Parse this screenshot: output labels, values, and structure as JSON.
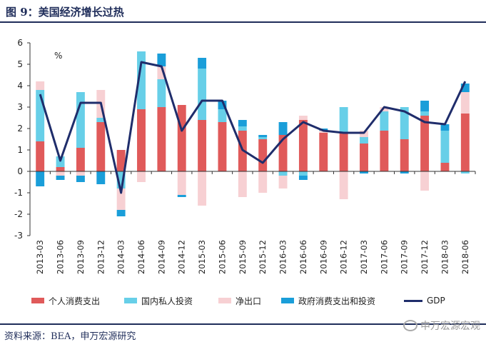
{
  "header": {
    "title": "图 9：美国经济增长过热"
  },
  "footer": {
    "source": "资料来源：BEA，申万宏源研究",
    "watermark": "申万宏源宏观"
  },
  "colors": {
    "personal": "#e05a5a",
    "private_inv": "#67cfe8",
    "net_export": "#f7d0d3",
    "gov": "#1a9ed9",
    "gdp": "#1f2d6b",
    "axis": "#333333"
  },
  "chart_data": {
    "type": "bar",
    "stacked": true,
    "title": "美国经济增长过热",
    "unit_label": "%",
    "xlabel": "",
    "ylabel": "",
    "ylim": [
      -3,
      6
    ],
    "yticks": [
      -3,
      -2,
      -1,
      0,
      1,
      2,
      3,
      4,
      5,
      6
    ],
    "categories": [
      "2013-03",
      "2013-06",
      "2013-09",
      "2013-12",
      "2014-03",
      "2014-06",
      "2014-09",
      "2014-12",
      "2015-03",
      "2015-06",
      "2015-09",
      "2015-12",
      "2016-03",
      "2016-06",
      "2016-09",
      "2016-12",
      "2017-03",
      "2017-06",
      "2017-09",
      "2017-12",
      "2018-03",
      "2018-06"
    ],
    "series": [
      {
        "name": "个人消费支出",
        "color_key": "personal",
        "values": [
          1.4,
          0.2,
          1.1,
          2.3,
          1.0,
          2.9,
          3.0,
          3.1,
          2.4,
          2.3,
          1.9,
          1.5,
          1.7,
          2.4,
          1.8,
          1.8,
          1.3,
          1.9,
          1.5,
          2.6,
          0.4,
          2.7
        ]
      },
      {
        "name": "国内私人投资",
        "color_key": "private_inv",
        "values": [
          2.4,
          0.5,
          2.6,
          0.2,
          -0.8,
          2.7,
          1.3,
          0.0,
          2.4,
          0.6,
          0.2,
          0.1,
          -0.2,
          -0.2,
          0.0,
          1.2,
          0.3,
          0.9,
          1.5,
          0.2,
          1.5,
          -0.1
        ]
      },
      {
        "name": "净出口",
        "color_key": "net_export",
        "values": [
          0.4,
          -0.2,
          -0.2,
          1.3,
          -1.0,
          -0.5,
          0.6,
          -1.1,
          -1.6,
          0.0,
          -1.2,
          -1.0,
          -0.6,
          0.2,
          0.1,
          -1.3,
          0.3,
          0.2,
          0.0,
          -0.9,
          0.0,
          1.0
        ]
      },
      {
        "name": "政府消费支出和投资",
        "color_key": "gov",
        "values": [
          -0.7,
          -0.2,
          -0.3,
          -0.6,
          -0.3,
          0.0,
          0.6,
          -0.1,
          0.5,
          0.4,
          0.3,
          0.1,
          0.6,
          -0.2,
          0.1,
          0.0,
          -0.1,
          0.0,
          -0.1,
          0.5,
          0.3,
          0.4
        ]
      }
    ],
    "line": {
      "name": "GDP",
      "color_key": "gdp",
      "values": [
        3.6,
        0.5,
        3.2,
        3.2,
        -1.0,
        5.1,
        4.9,
        1.9,
        3.3,
        3.3,
        1.0,
        0.4,
        1.5,
        2.3,
        1.9,
        1.8,
        1.8,
        3.0,
        2.8,
        2.3,
        2.2,
        4.2
      ]
    },
    "legend_position": "bottom"
  }
}
